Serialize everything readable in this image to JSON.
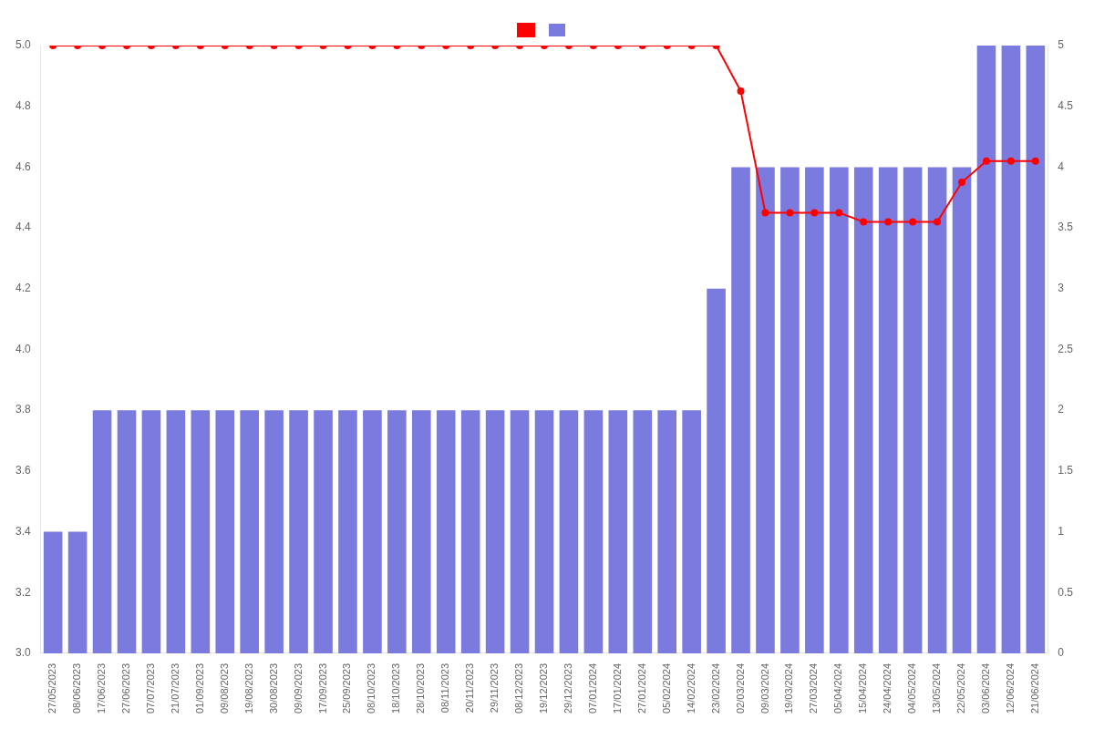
{
  "chart_data": {
    "type": "bar",
    "categories": [
      "27/05/2023",
      "08/06/2023",
      "17/06/2023",
      "27/06/2023",
      "07/07/2023",
      "21/07/2023",
      "01/09/2023",
      "09/08/2023",
      "19/08/2023",
      "30/08/2023",
      "09/09/2023",
      "17/09/2023",
      "25/09/2023",
      "08/10/2023",
      "18/10/2023",
      "28/10/2023",
      "08/11/2023",
      "20/11/2023",
      "29/11/2023",
      "08/12/2023",
      "19/12/2023",
      "29/12/2023",
      "07/01/2024",
      "17/01/2024",
      "27/01/2024",
      "05/02/2024",
      "14/02/2024",
      "23/02/2024",
      "02/03/2024",
      "09/03/2024",
      "19/03/2024",
      "27/03/2024",
      "05/04/2024",
      "15/04/2024",
      "24/04/2024",
      "04/05/2024",
      "13/05/2024",
      "22/05/2024",
      "03/06/2024",
      "12/06/2024",
      "21/06/2024"
    ],
    "series": [
      {
        "type": "line",
        "color": "#ff0000",
        "marker": "circle",
        "values": [
          5.0,
          5.0,
          5.0,
          5.0,
          5.0,
          5.0,
          5.0,
          5.0,
          5.0,
          5.0,
          5.0,
          5.0,
          5.0,
          5.0,
          5.0,
          5.0,
          5.0,
          5.0,
          5.0,
          5.0,
          5.0,
          5.0,
          5.0,
          5.0,
          5.0,
          5.0,
          5.0,
          5.0,
          4.85,
          4.45,
          4.45,
          4.45,
          4.45,
          4.42,
          4.42,
          4.42,
          4.42,
          4.55,
          4.62,
          4.62,
          4.62
        ]
      },
      {
        "type": "bar",
        "color": "#7b7bdf",
        "values": [
          3.4,
          3.4,
          3.8,
          3.8,
          3.8,
          3.8,
          3.8,
          3.8,
          3.8,
          3.8,
          3.8,
          3.8,
          3.8,
          3.8,
          3.8,
          3.8,
          3.8,
          3.8,
          3.8,
          3.8,
          3.8,
          3.8,
          3.8,
          3.8,
          3.8,
          3.8,
          3.8,
          4.2,
          4.6,
          4.6,
          4.6,
          4.6,
          4.6,
          4.6,
          4.6,
          4.6,
          4.6,
          4.6,
          5.0,
          5.0,
          5.0
        ]
      }
    ],
    "ylim": [
      3.0,
      5.0
    ],
    "yticks": [
      {
        "value": 3.0,
        "label": "3.0"
      },
      3.2,
      3.4,
      3.6,
      3.8,
      {
        "value": 4.0,
        "label": "4.0"
      },
      4.2,
      4.4,
      4.6,
      4.8,
      {
        "value": 5.0,
        "label": "5.0"
      }
    ],
    "y2lim": [
      0,
      5.0
    ],
    "y2ticks": [
      0,
      0.5,
      1,
      1.5,
      2,
      2.5,
      3,
      3.5,
      4,
      4.5,
      5
    ],
    "grid": false,
    "legend": "top"
  }
}
